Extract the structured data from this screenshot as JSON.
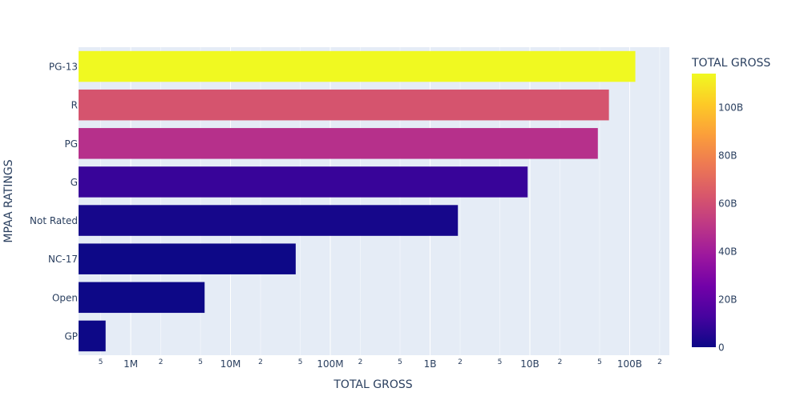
{
  "chart_data": {
    "type": "bar",
    "orientation": "horizontal",
    "x_scale": "log",
    "xlim": [
      300000.0,
      250000000000.0
    ],
    "xlabel": "TOTAL GROSS",
    "ylabel": "MPAA RATINGS",
    "categories": [
      "PG-13",
      "R",
      "PG",
      "G",
      "Not Rated",
      "NC-17",
      "Open",
      "GP"
    ],
    "values": [
      114000000000,
      62000000000,
      48000000000,
      9500000000,
      1900000000,
      45000000,
      5500000,
      560000
    ],
    "colorbar": {
      "title": "TOTAL GROSS",
      "range": [
        0,
        114000000000
      ],
      "ticks": [
        0,
        20000000000,
        40000000000,
        60000000000,
        80000000000,
        100000000000
      ],
      "tick_labels": [
        "0",
        "20B",
        "40B",
        "60B",
        "80B",
        "100B"
      ],
      "colorscale": [
        "#0d0887",
        "#46039f",
        "#7201a8",
        "#9c179e",
        "#bd3786",
        "#d8576b",
        "#ed7953",
        "#fb9f3a",
        "#fdca26",
        "#f0f921"
      ]
    },
    "x_ticks": {
      "major": [
        1000000,
        10000000,
        100000000,
        1000000000,
        10000000000,
        100000000000
      ],
      "major_labels": [
        "1M",
        "10M",
        "100M",
        "1B",
        "10B",
        "100B"
      ],
      "minor": [
        500000,
        2000000,
        5000000,
        20000000,
        50000000,
        200000000,
        500000000,
        2000000000,
        5000000000,
        20000000000,
        50000000000,
        200000000000
      ],
      "minor_labels": [
        "5",
        "2",
        "5",
        "2",
        "5",
        "2",
        "5",
        "2",
        "5",
        "2",
        "5",
        "2"
      ]
    },
    "grid": true,
    "legend": "none"
  }
}
